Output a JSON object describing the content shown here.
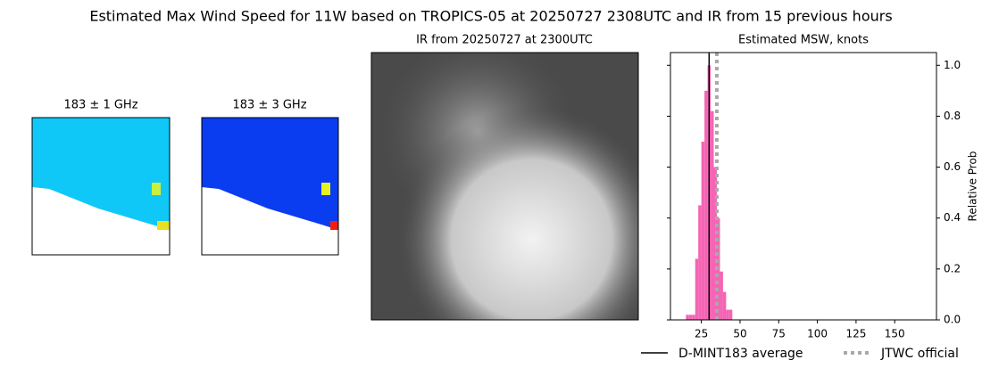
{
  "figure_title": "Estimated Max Wind Speed for 11W based on TROPICS-05 at 20250727 2308UTC and IR from 15 previous hours",
  "image_panels": [
    {
      "title": "183 ± 1 GHz"
    },
    {
      "title": "183 ± 3 GHz"
    },
    {
      "title": "IR from 20250727 at 2300UTC"
    }
  ],
  "chart_data": {
    "type": "histogram",
    "title": "Estimated MSW, knots",
    "y_label": "Relative Prob",
    "bins": [
      15,
      17,
      19,
      21,
      23,
      25,
      27,
      29,
      31,
      33,
      35,
      37,
      39,
      41,
      43,
      45
    ],
    "values": [
      0.02,
      0.02,
      0.02,
      0.24,
      0.45,
      0.7,
      0.9,
      1.0,
      0.82,
      0.6,
      0.4,
      0.19,
      0.11,
      0.04,
      0.04
    ],
    "color": "#f564b4",
    "xlim": [
      5,
      177
    ],
    "ylim": [
      0,
      1.05
    ],
    "xticks": [
      25,
      50,
      75,
      100,
      125,
      150
    ],
    "yticks": [
      {
        "value": 0,
        "label": "0.0"
      },
      {
        "value": 0.2,
        "label": "0.2"
      },
      {
        "value": 0.4,
        "label": "0.4"
      },
      {
        "value": 0.6,
        "label": "0.6"
      },
      {
        "value": 0.8,
        "label": "0.8"
      },
      {
        "value": 1.0,
        "label": "1.0"
      }
    ],
    "reference_lines": [
      {
        "name": "D-MINT183 average",
        "value": 30,
        "color": "#000000",
        "style": "solid"
      },
      {
        "name": "JTWC official",
        "value": 35,
        "color": "#a9a9a9",
        "style": "dotted"
      }
    ]
  }
}
